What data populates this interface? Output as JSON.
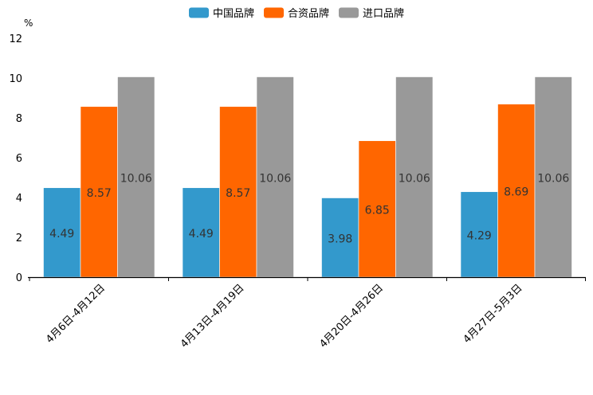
{
  "chart_data": {
    "type": "bar",
    "unit": "%",
    "categories": [
      "4月6日-4月12日",
      "4月13日-4月19日",
      "4月20日-4月26日",
      "4月27日-5月3日"
    ],
    "series": [
      {
        "name": "中国品牌",
        "color": "#3399cc",
        "values": [
          4.49,
          4.49,
          3.98,
          4.29
        ]
      },
      {
        "name": "合资品牌",
        "color": "#ff6600",
        "values": [
          8.57,
          8.57,
          6.85,
          8.69
        ]
      },
      {
        "name": "进口品牌",
        "color": "#999999",
        "values": [
          10.06,
          10.06,
          10.06,
          10.06
        ]
      }
    ],
    "ylim": [
      0,
      12
    ],
    "yticks": [
      "0",
      "2",
      "4",
      "6",
      "8",
      "10",
      "12"
    ],
    "legend_position": "top-center",
    "grid": false
  }
}
